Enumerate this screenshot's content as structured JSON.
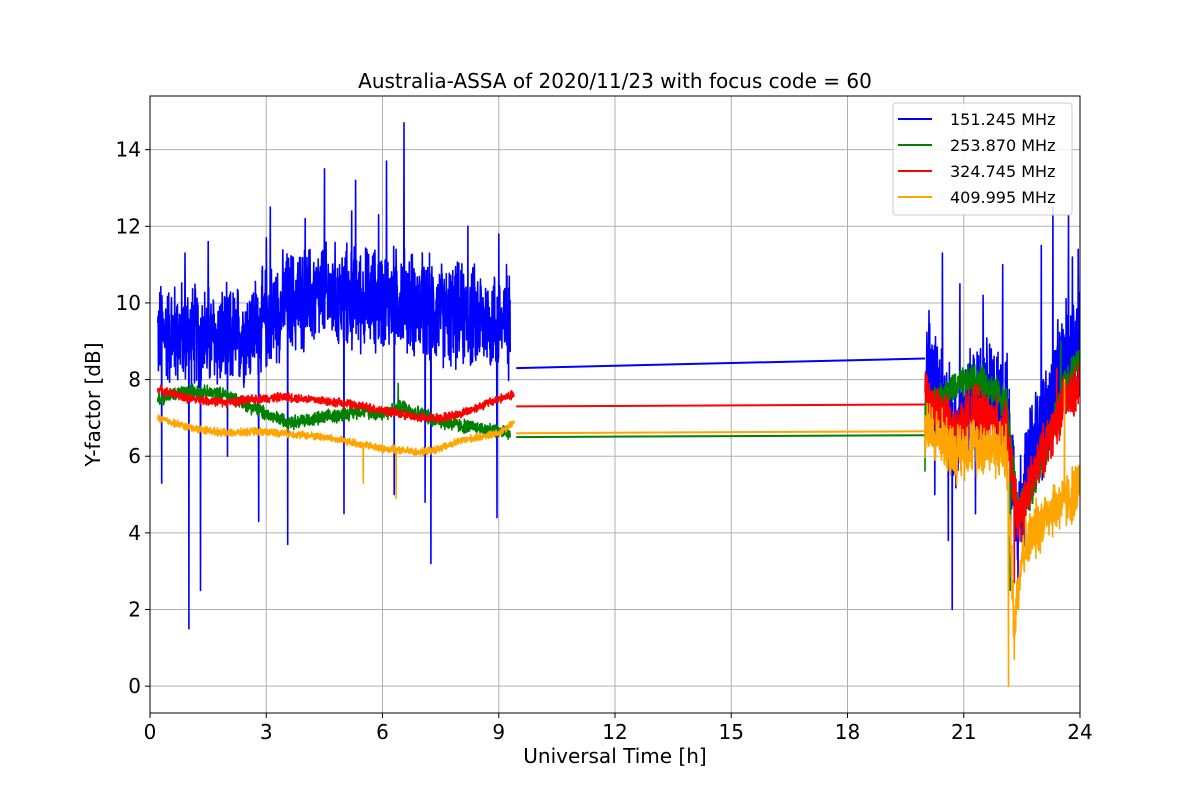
{
  "chart_data": {
    "type": "line",
    "title": "Australia-ASSA of 2020/11/23 with focus code = 60",
    "xlabel": "Universal Time [h]",
    "ylabel": "Y-factor [dB]",
    "xlim": [
      0,
      24
    ],
    "ylim": [
      -0.7,
      15.4
    ],
    "xticks": [
      0,
      3,
      6,
      9,
      12,
      15,
      18,
      21,
      24
    ],
    "yticks": [
      0,
      2,
      4,
      6,
      8,
      10,
      12,
      14
    ],
    "grid": true,
    "legend_position": "top-right",
    "series": [
      {
        "name": "151.245 MHz",
        "color": "#0000ff",
        "segments": [
          {
            "mean": [
              [
                0.2,
                9.2
              ],
              [
                1.0,
                9.2
              ],
              [
                2.0,
                9.0
              ],
              [
                2.8,
                9.4
              ],
              [
                3.5,
                10.0
              ],
              [
                4.5,
                10.2
              ],
              [
                5.5,
                10.1
              ],
              [
                6.5,
                10.1
              ],
              [
                7.5,
                9.7
              ],
              [
                8.5,
                9.6
              ],
              [
                9.3,
                9.4
              ]
            ],
            "amp": 1.6,
            "spikes": [
              [
                0.3,
                5.3
              ],
              [
                0.9,
                11.3
              ],
              [
                1.0,
                1.5
              ],
              [
                1.3,
                2.5
              ],
              [
                1.5,
                11.6
              ],
              [
                2.0,
                6.0
              ],
              [
                2.8,
                4.3
              ],
              [
                3.0,
                11.7
              ],
              [
                3.1,
                12.5
              ],
              [
                3.55,
                3.7
              ],
              [
                4.0,
                12.2
              ],
              [
                4.5,
                13.5
              ],
              [
                5.0,
                4.5
              ],
              [
                5.2,
                12.4
              ],
              [
                5.3,
                13.2
              ],
              [
                5.9,
                12.3
              ],
              [
                6.1,
                13.7
              ],
              [
                6.55,
                14.7
              ],
              [
                6.3,
                5.0
              ],
              [
                7.1,
                4.8
              ],
              [
                7.25,
                3.2
              ],
              [
                8.2,
                12.0
              ],
              [
                9.0,
                11.8
              ],
              [
                8.95,
                4.4
              ],
              [
                9.2,
                11.0
              ],
              [
                9.3,
                5.0
              ]
            ]
          },
          {
            "mean": [
              [
                9.45,
                8.3
              ],
              [
                20.0,
                8.55
              ]
            ],
            "amp": 0,
            "spikes": []
          },
          {
            "mean": [
              [
                20.0,
                8.4
              ],
              [
                20.4,
                7.8
              ],
              [
                20.8,
                6.5
              ],
              [
                21.2,
                7.4
              ],
              [
                21.6,
                7.7
              ],
              [
                22.1,
                7.3
              ],
              [
                22.4,
                4.5
              ],
              [
                22.8,
                6.3
              ],
              [
                23.2,
                7.2
              ],
              [
                23.6,
                8.5
              ],
              [
                24.0,
                9.3
              ]
            ],
            "amp": 1.7,
            "spikes": [
              [
                20.1,
                9.8
              ],
              [
                20.25,
                5.0
              ],
              [
                20.45,
                11.3
              ],
              [
                20.6,
                3.8
              ],
              [
                20.7,
                2.0
              ],
              [
                20.9,
                10.5
              ],
              [
                21.3,
                4.5
              ],
              [
                21.5,
                10.2
              ],
              [
                22.0,
                11.0
              ],
              [
                22.2,
                2.8
              ],
              [
                22.4,
                2.2
              ],
              [
                23.0,
                11.5
              ],
              [
                23.3,
                12.5
              ],
              [
                23.7,
                12.3
              ],
              [
                23.8,
                11.2
              ],
              [
                23.95,
                11.4
              ]
            ]
          }
        ]
      },
      {
        "name": "253.870 MHz",
        "color": "#008000",
        "segments": [
          {
            "mean": [
              [
                0.2,
                7.5
              ],
              [
                1.0,
                7.7
              ],
              [
                2.0,
                7.6
              ],
              [
                2.8,
                7.2
              ],
              [
                3.2,
                7.0
              ],
              [
                3.7,
                6.9
              ],
              [
                4.5,
                7.0
              ],
              [
                5.5,
                7.2
              ],
              [
                6.0,
                7.1
              ],
              [
                6.5,
                7.3
              ],
              [
                7.0,
                7.1
              ],
              [
                7.5,
                6.9
              ],
              [
                8.0,
                6.8
              ],
              [
                8.7,
                6.7
              ],
              [
                9.3,
                6.6
              ]
            ],
            "amp": 0.22,
            "spikes": [
              [
                6.4,
                7.9
              ],
              [
                9.4,
                5.9
              ]
            ]
          },
          {
            "mean": [
              [
                9.45,
                6.5
              ],
              [
                20.0,
                6.55
              ]
            ],
            "amp": 0,
            "spikes": []
          },
          {
            "mean": [
              [
                20.0,
                7.2
              ],
              [
                20.4,
                7.5
              ],
              [
                20.8,
                7.8
              ],
              [
                21.2,
                8.0
              ],
              [
                21.6,
                7.9
              ],
              [
                22.1,
                7.4
              ],
              [
                22.4,
                4.5
              ],
              [
                22.8,
                5.2
              ],
              [
                23.2,
                6.5
              ],
              [
                23.6,
                7.8
              ],
              [
                24.0,
                8.6
              ]
            ],
            "amp": 0.5,
            "spikes": [
              [
                20.0,
                5.6
              ],
              [
                22.2,
                2.5
              ],
              [
                23.5,
                9.0
              ]
            ]
          }
        ]
      },
      {
        "name": "324.745 MHz",
        "color": "#ff0000",
        "segments": [
          {
            "mean": [
              [
                0.2,
                7.75
              ],
              [
                1.0,
                7.5
              ],
              [
                2.0,
                7.4
              ],
              [
                2.8,
                7.5
              ],
              [
                3.5,
                7.55
              ],
              [
                4.5,
                7.45
              ],
              [
                5.5,
                7.3
              ],
              [
                6.0,
                7.2
              ],
              [
                6.5,
                7.1
              ],
              [
                7.0,
                7.0
              ],
              [
                7.5,
                7.0
              ],
              [
                8.0,
                7.1
              ],
              [
                8.5,
                7.3
              ],
              [
                9.0,
                7.5
              ],
              [
                9.4,
                7.6
              ]
            ],
            "amp": 0.14,
            "spikes": []
          },
          {
            "mean": [
              [
                9.45,
                7.3
              ],
              [
                20.0,
                7.35
              ]
            ],
            "amp": 0,
            "spikes": []
          },
          {
            "mean": [
              [
                20.0,
                7.6
              ],
              [
                20.4,
                7.2
              ],
              [
                20.8,
                6.6
              ],
              [
                21.2,
                7.2
              ],
              [
                21.6,
                7.0
              ],
              [
                22.1,
                6.7
              ],
              [
                22.4,
                4.3
              ],
              [
                22.8,
                5.5
              ],
              [
                23.2,
                6.5
              ],
              [
                23.6,
                7.4
              ],
              [
                24.0,
                7.8
              ]
            ],
            "amp": 0.8,
            "spikes": [
              [
                20.05,
                8.1
              ],
              [
                22.3,
                2.7
              ],
              [
                23.4,
                8.3
              ]
            ]
          }
        ]
      },
      {
        "name": "409.995 MHz",
        "color": "#ffa500",
        "segments": [
          {
            "mean": [
              [
                0.2,
                7.0
              ],
              [
                1.0,
                6.75
              ],
              [
                2.0,
                6.6
              ],
              [
                2.8,
                6.65
              ],
              [
                3.5,
                6.6
              ],
              [
                4.5,
                6.5
              ],
              [
                5.0,
                6.4
              ],
              [
                5.5,
                6.3
              ],
              [
                6.0,
                6.2
              ],
              [
                6.5,
                6.15
              ],
              [
                7.0,
                6.1
              ],
              [
                7.5,
                6.2
              ],
              [
                8.0,
                6.4
              ],
              [
                8.5,
                6.5
              ],
              [
                9.0,
                6.6
              ],
              [
                9.4,
                6.9
              ]
            ],
            "amp": 0.12,
            "spikes": [
              [
                5.5,
                5.3
              ],
              [
                6.35,
                4.9
              ]
            ]
          },
          {
            "mean": [
              [
                9.45,
                6.6
              ],
              [
                20.0,
                6.65
              ]
            ],
            "amp": 0,
            "spikes": []
          },
          {
            "mean": [
              [
                20.0,
                6.7
              ],
              [
                20.4,
                6.5
              ],
              [
                20.8,
                6.1
              ],
              [
                21.2,
                6.3
              ],
              [
                21.6,
                6.3
              ],
              [
                22.1,
                6.1
              ],
              [
                22.3,
                1.6
              ],
              [
                22.5,
                3.5
              ],
              [
                22.8,
                4.0
              ],
              [
                23.2,
                4.6
              ],
              [
                23.6,
                4.8
              ],
              [
                24.0,
                5.2
              ]
            ],
            "amp": 0.9,
            "spikes": [
              [
                22.15,
                0.0
              ],
              [
                22.3,
                0.7
              ],
              [
                23.6,
                8.0
              ]
            ]
          }
        ]
      }
    ]
  }
}
